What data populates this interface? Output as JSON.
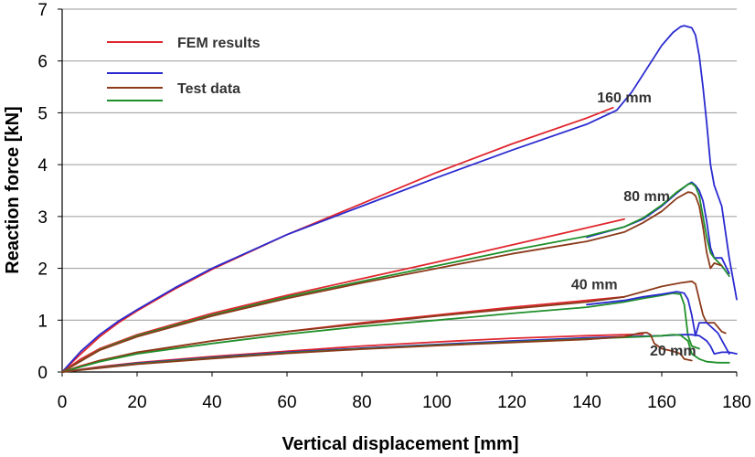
{
  "chart_data": {
    "type": "line",
    "title": "",
    "xlabel": "Vertical displacement [mm]",
    "ylabel": "Reaction force [kN]",
    "xlim": [
      0,
      180
    ],
    "ylim": [
      0,
      7
    ],
    "xticks": [
      0,
      20,
      40,
      60,
      80,
      100,
      120,
      140,
      160,
      180
    ],
    "yticks": [
      0,
      1,
      2,
      3,
      4,
      5,
      6,
      7
    ],
    "grid": "horizontal",
    "legend": {
      "placement": "top-left",
      "entries": [
        {
          "label": "FEM results",
          "colors": [
            "#e0262e"
          ]
        },
        {
          "label": "Test data",
          "colors": [
            "#2a2ad0",
            "#8b3a1a",
            "#1f8f2a"
          ]
        }
      ]
    },
    "annotations": [
      {
        "text": "160 mm",
        "x": 150,
        "y": 5.2
      },
      {
        "text": "80 mm",
        "x": 156,
        "y": 3.3
      },
      {
        "text": "40 mm",
        "x": 142,
        "y": 1.6
      },
      {
        "text": "20 mm",
        "x": 163,
        "y": 0.32
      }
    ],
    "colors": {
      "fem": "#e0262e",
      "blue": "#2a2ad0",
      "brown": "#8b3a1a",
      "green": "#1f8f2a",
      "grid": "#9a9a9a"
    },
    "series": [
      {
        "group": "160 mm",
        "color": "#e0262e",
        "x": [
          0,
          5,
          10,
          15,
          20,
          30,
          40,
          60,
          80,
          100,
          120,
          140,
          147
        ],
        "y": [
          0,
          0.35,
          0.68,
          0.95,
          1.18,
          1.6,
          1.98,
          2.65,
          3.25,
          3.85,
          4.4,
          4.9,
          5.1
        ]
      },
      {
        "group": "160 mm",
        "color": "#2a2ad0",
        "x": [
          0,
          5,
          10,
          15,
          20,
          30,
          40,
          60,
          80,
          100,
          120,
          140,
          148,
          152,
          156,
          160,
          163,
          165,
          166,
          167,
          168,
          169,
          170,
          171,
          172,
          173,
          174,
          176,
          178,
          180
        ],
        "y": [
          0,
          0.4,
          0.72,
          0.98,
          1.2,
          1.62,
          2.0,
          2.65,
          3.2,
          3.75,
          4.28,
          4.78,
          5.05,
          5.4,
          5.85,
          6.3,
          6.55,
          6.66,
          6.68,
          6.66,
          6.64,
          6.5,
          6.1,
          5.5,
          4.8,
          4.0,
          3.6,
          3.2,
          2.2,
          1.4
        ]
      },
      {
        "group": "80 mm",
        "color": "#e0262e",
        "x": [
          0,
          5,
          10,
          20,
          40,
          60,
          80,
          100,
          120,
          140,
          150
        ],
        "y": [
          0,
          0.25,
          0.45,
          0.72,
          1.13,
          1.48,
          1.8,
          2.12,
          2.45,
          2.78,
          2.95
        ]
      },
      {
        "group": "80 mm",
        "color": "#2a2ad0",
        "x": [
          140,
          150,
          155,
          160,
          164,
          167,
          168,
          169,
          170,
          171,
          172,
          173,
          174,
          176,
          178
        ],
        "y": [
          2.6,
          2.8,
          2.95,
          3.2,
          3.45,
          3.62,
          3.66,
          3.6,
          3.5,
          3.3,
          2.9,
          2.4,
          2.2,
          2.2,
          1.9
        ]
      },
      {
        "group": "80 mm",
        "color": "#1f8f2a",
        "x": [
          0,
          10,
          20,
          40,
          60,
          80,
          100,
          120,
          140,
          150,
          155,
          160,
          164,
          167,
          168,
          169,
          170,
          171,
          172,
          173,
          174,
          176,
          178
        ],
        "y": [
          0,
          0.43,
          0.7,
          1.1,
          1.45,
          1.75,
          2.05,
          2.35,
          2.62,
          2.8,
          2.97,
          3.22,
          3.47,
          3.62,
          3.64,
          3.58,
          3.4,
          3.0,
          2.6,
          2.3,
          2.2,
          2.05,
          1.85
        ]
      },
      {
        "group": "80 mm",
        "color": "#8b3a1a",
        "x": [
          0,
          10,
          20,
          40,
          60,
          80,
          100,
          120,
          140,
          150,
          155,
          160,
          164,
          167,
          168,
          169,
          170,
          171,
          172,
          173,
          174,
          176
        ],
        "y": [
          0,
          0.42,
          0.68,
          1.08,
          1.42,
          1.72,
          2.0,
          2.28,
          2.52,
          2.7,
          2.88,
          3.1,
          3.35,
          3.47,
          3.46,
          3.4,
          3.2,
          2.8,
          2.3,
          2.0,
          2.1,
          2.05
        ]
      },
      {
        "group": "40 mm",
        "color": "#e0262e",
        "x": [
          0,
          5,
          10,
          20,
          40,
          60,
          80,
          100,
          120,
          140,
          150
        ],
        "y": [
          0,
          0.12,
          0.22,
          0.37,
          0.6,
          0.78,
          0.95,
          1.1,
          1.25,
          1.38,
          1.45
        ]
      },
      {
        "group": "40 mm",
        "color": "#8b3a1a",
        "x": [
          0,
          10,
          20,
          40,
          60,
          80,
          100,
          120,
          140,
          150,
          155,
          160,
          165,
          168,
          169,
          170,
          171,
          172,
          174,
          176,
          177
        ],
        "y": [
          0,
          0.22,
          0.38,
          0.6,
          0.78,
          0.93,
          1.08,
          1.22,
          1.35,
          1.45,
          1.55,
          1.65,
          1.72,
          1.75,
          1.7,
          1.4,
          1.1,
          0.95,
          0.95,
          0.78,
          0.75
        ]
      },
      {
        "group": "40 mm",
        "color": "#1f8f2a",
        "x": [
          0,
          10,
          20,
          40,
          60,
          80,
          100,
          120,
          140,
          150,
          155,
          160,
          163,
          165,
          166,
          167,
          168,
          170
        ],
        "y": [
          0,
          0.2,
          0.35,
          0.55,
          0.73,
          0.88,
          1.0,
          1.13,
          1.25,
          1.35,
          1.42,
          1.48,
          1.52,
          1.5,
          1.3,
          0.7,
          0.5,
          0.45
        ]
      },
      {
        "group": "40 mm",
        "color": "#2a2ad0",
        "x": [
          140,
          150,
          155,
          160,
          164,
          166,
          167,
          168,
          169,
          170,
          172,
          175,
          178
        ],
        "y": [
          1.3,
          1.38,
          1.45,
          1.5,
          1.55,
          1.52,
          1.4,
          1.1,
          0.7,
          0.95,
          0.95,
          0.75,
          0.35
        ]
      },
      {
        "group": "20 mm",
        "color": "#e0262e",
        "x": [
          0,
          10,
          20,
          40,
          60,
          80,
          100,
          120,
          140,
          150,
          155
        ],
        "y": [
          0,
          0.1,
          0.18,
          0.3,
          0.4,
          0.5,
          0.58,
          0.65,
          0.7,
          0.72,
          0.73
        ]
      },
      {
        "group": "20 mm",
        "color": "#2a2ad0",
        "x": [
          0,
          20,
          40,
          60,
          80,
          100,
          120,
          140,
          160,
          165,
          168,
          170,
          172,
          173,
          174,
          176,
          178,
          180
        ],
        "y": [
          0,
          0.17,
          0.28,
          0.38,
          0.46,
          0.53,
          0.6,
          0.66,
          0.7,
          0.72,
          0.72,
          0.7,
          0.6,
          0.5,
          0.35,
          0.38,
          0.38,
          0.35
        ]
      },
      {
        "group": "20 mm",
        "color": "#1f8f2a",
        "x": [
          0,
          20,
          40,
          60,
          80,
          100,
          120,
          140,
          155,
          160,
          163,
          165,
          167,
          168,
          170,
          172,
          175,
          178
        ],
        "y": [
          0,
          0.16,
          0.27,
          0.37,
          0.45,
          0.52,
          0.58,
          0.64,
          0.68,
          0.7,
          0.72,
          0.71,
          0.6,
          0.35,
          0.25,
          0.2,
          0.18,
          0.18
        ]
      },
      {
        "group": "20 mm",
        "color": "#8b3a1a",
        "x": [
          0,
          20,
          40,
          60,
          80,
          100,
          120,
          140,
          150,
          154,
          156,
          157,
          158,
          160,
          163,
          165,
          166,
          168
        ],
        "y": [
          0,
          0.15,
          0.26,
          0.36,
          0.44,
          0.51,
          0.57,
          0.63,
          0.68,
          0.75,
          0.76,
          0.72,
          0.55,
          0.45,
          0.4,
          0.35,
          0.25,
          0.22
        ]
      }
    ]
  }
}
